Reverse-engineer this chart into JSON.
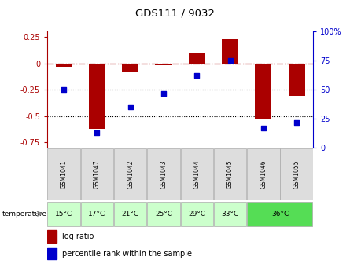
{
  "title": "GDS111 / 9032",
  "samples": [
    "GSM1041",
    "GSM1047",
    "GSM1042",
    "GSM1043",
    "GSM1044",
    "GSM1045",
    "GSM1046",
    "GSM1055"
  ],
  "log_ratios": [
    -0.03,
    -0.62,
    -0.08,
    -0.02,
    0.1,
    0.23,
    -0.52,
    -0.31
  ],
  "percentile_ranks": [
    50,
    13,
    35,
    47,
    62,
    75,
    17,
    22
  ],
  "temp_groups": [
    [
      0,
      0,
      "15°C",
      "#ccffcc"
    ],
    [
      1,
      1,
      "17°C",
      "#ccffcc"
    ],
    [
      2,
      2,
      "21°C",
      "#ccffcc"
    ],
    [
      3,
      3,
      "25°C",
      "#ccffcc"
    ],
    [
      4,
      4,
      "29°C",
      "#ccffcc"
    ],
    [
      5,
      5,
      "33°C",
      "#ccffcc"
    ],
    [
      6,
      7,
      "36°C",
      "#55dd55"
    ]
  ],
  "ylim_left": [
    -0.8,
    0.3
  ],
  "ylim_right": [
    0,
    100
  ],
  "left_ticks": [
    0.25,
    0.0,
    -0.25,
    -0.5,
    -0.75
  ],
  "right_ticks": [
    100,
    75,
    50,
    25,
    0
  ],
  "bar_color": "#aa0000",
  "dot_color": "#0000cc",
  "gsm_bg": "#dddddd",
  "gsm_edge": "#aaaaaa",
  "background_color": "#ffffff",
  "label_log_ratio": "log ratio",
  "label_percentile": "percentile rank within the sample",
  "temperature_label": "temperature"
}
